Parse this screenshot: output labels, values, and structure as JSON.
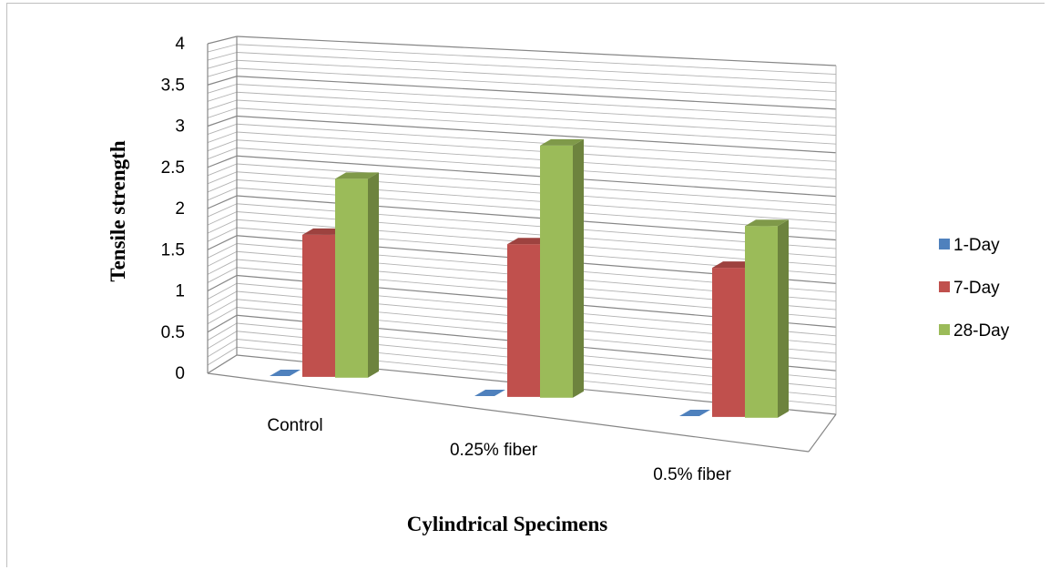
{
  "chart_data": {
    "type": "bar",
    "title": "",
    "xlabel": "Cylindrical Specimens",
    "ylabel": "Tensile strength",
    "ylim": [
      0,
      4
    ],
    "y_ticks": [
      "0",
      "0.5",
      "1",
      "1.5",
      "2",
      "2.5",
      "3",
      "3.5",
      "4"
    ],
    "grid": true,
    "legend_position": "right",
    "categories": [
      "Control",
      "0.25% fiber",
      "0.5% fiber"
    ],
    "series": [
      {
        "name": "1-Day",
        "values": [
          0,
          0,
          0
        ],
        "color": "#4f81bd"
      },
      {
        "name": "7-Day",
        "values": [
          2.0,
          2.15,
          2.1
        ],
        "color": "#c0504d"
      },
      {
        "name": "28-Day",
        "values": [
          2.8,
          3.55,
          2.7
        ],
        "color": "#9bbb59"
      }
    ]
  }
}
